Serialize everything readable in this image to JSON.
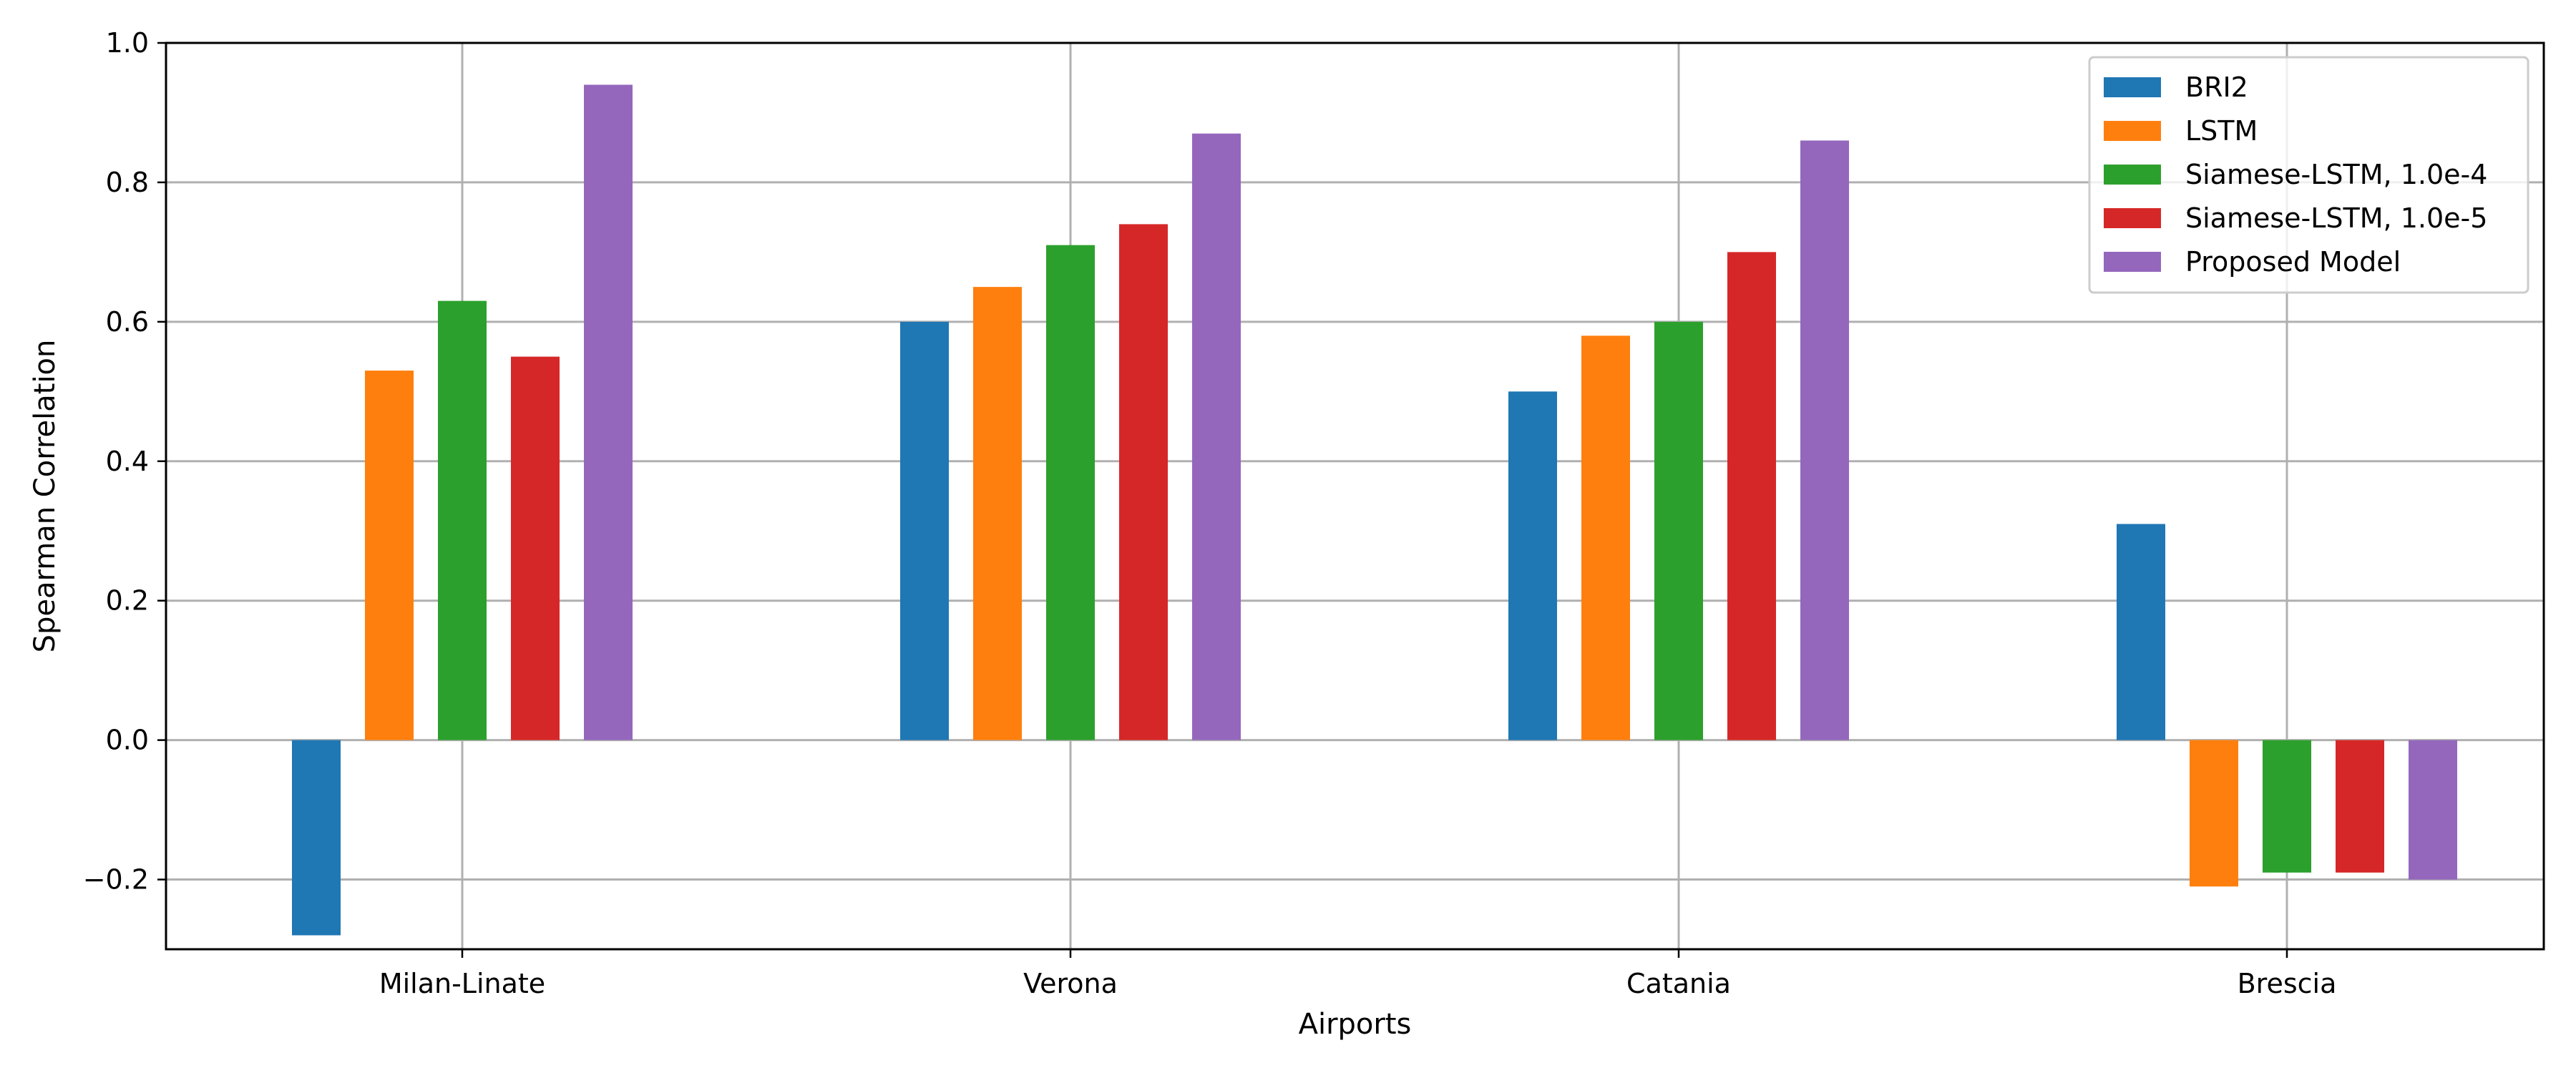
{
  "chart_data": {
    "type": "bar",
    "xlabel": "Airports",
    "ylabel": "Spearman Correlation",
    "categories": [
      "Milan-Linate",
      "Verona",
      "Catania",
      "Brescia"
    ],
    "ylim": [
      -0.3,
      1.0
    ],
    "yticks": [
      -0.2,
      0.0,
      0.2,
      0.4,
      0.6,
      0.8,
      1.0
    ],
    "ytick_labels": [
      "−0.2",
      "0.0",
      "0.2",
      "0.4",
      "0.6",
      "0.8",
      "1.0"
    ],
    "grid": true,
    "legend_position": "top-right",
    "series": [
      {
        "name": "BRI2",
        "color": "#1f77b4",
        "values": [
          -0.28,
          0.6,
          0.5,
          0.31
        ]
      },
      {
        "name": "LSTM",
        "color": "#ff7f0e",
        "values": [
          0.53,
          0.65,
          0.58,
          -0.21
        ]
      },
      {
        "name": "Siamese-LSTM, 1.0e-4",
        "color": "#2ca02c",
        "values": [
          0.63,
          0.71,
          0.6,
          -0.19
        ]
      },
      {
        "name": "Siamese-LSTM, 1.0e-5",
        "color": "#d62728",
        "values": [
          0.55,
          0.74,
          0.7,
          -0.19
        ]
      },
      {
        "name": "Proposed Model",
        "color": "#9467bd",
        "values": [
          0.94,
          0.87,
          0.86,
          -0.2
        ]
      }
    ]
  }
}
